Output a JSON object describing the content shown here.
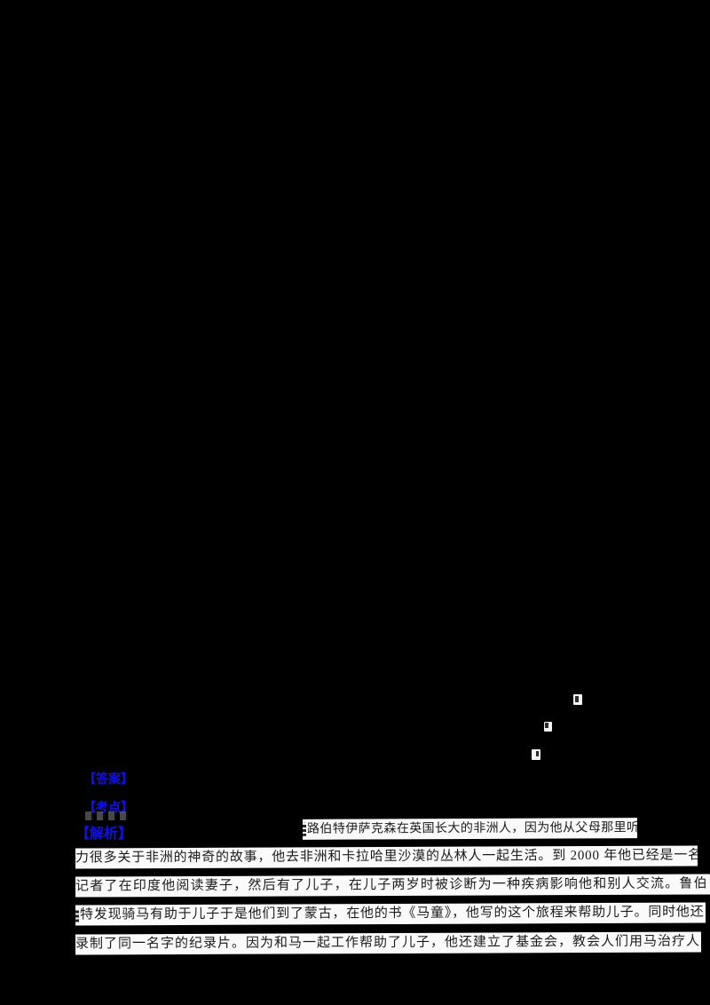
{
  "page": {
    "background_color": "#000000",
    "accent_blue": "#1010ee",
    "strip_background": "#fafafa",
    "text_color": "#1b1b1b"
  },
  "solution_labels": {
    "answer": "【答案】",
    "keypoint": "【考点】",
    "analysis": "【解析】"
  },
  "passage": {
    "lines": [
      "路伯特伊萨克森在英国长大的非洲人，因为他从父母那里听",
      "力很多关于非洲的神奇的故事，他去非洲和卡拉哈里沙漠的丛林人一起生活。到 2000 年他已经是一名",
      "记者了在印度他阅读妻子，然后有了儿子，在儿子两岁时被诊断为一种疾病影响他和别人交流。鲁伯",
      "特发现骑马有助于儿子于是他们到了蒙古，在他的书《马童》，他写的这个旅程来帮助儿子。同时他还",
      "录制了同一名字的纪录片。因为和马一起工作帮助了儿子，他还建立了基金会，教会人们用马治疗人"
    ]
  }
}
